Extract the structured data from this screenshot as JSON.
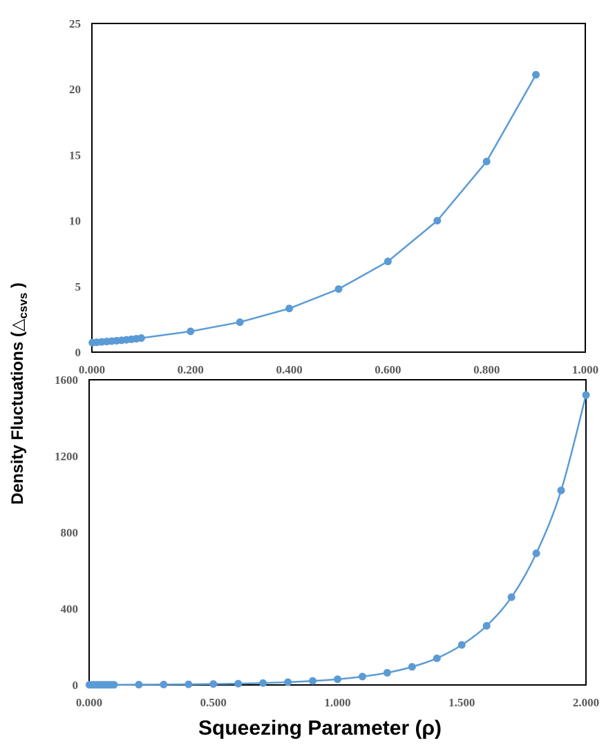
{
  "colors": {
    "series": "#5b9bd5",
    "frame": "#000000",
    "tick_text": "#595959"
  },
  "labels": {
    "ylabel_main": "Density Fluctuations (",
    "ylabel_symbol": "△",
    "ylabel_sub": "csvs",
    "ylabel_close": " )",
    "xlabel": "Squeezing Parameter (ρ)"
  },
  "chart_data": [
    {
      "type": "line",
      "xlim": [
        0,
        1
      ],
      "ylim": [
        0,
        25
      ],
      "xticks": [
        0,
        0.2,
        0.4,
        0.6,
        0.8,
        1.0
      ],
      "xtick_labels": [
        "0.000",
        "0.200",
        "0.400",
        "0.600",
        "0.800",
        "1.000"
      ],
      "yticks": [
        0,
        5,
        10,
        15,
        20,
        25
      ],
      "ytick_labels": [
        "0",
        "5",
        "10",
        "15",
        "20",
        "25"
      ],
      "grid": false,
      "legend": "none",
      "series": [
        {
          "x": [
            0.001,
            0.01,
            0.02,
            0.03,
            0.04,
            0.05,
            0.06,
            0.07,
            0.08,
            0.09,
            0.1,
            0.2,
            0.3,
            0.4,
            0.5,
            0.6,
            0.7,
            0.8,
            0.9
          ],
          "y": [
            0.72,
            0.75,
            0.78,
            0.81,
            0.84,
            0.87,
            0.9,
            0.94,
            0.98,
            1.02,
            1.07,
            1.58,
            2.28,
            3.32,
            4.8,
            6.9,
            10.0,
            14.5,
            21.1
          ]
        }
      ]
    },
    {
      "type": "line",
      "xlim": [
        0,
        2
      ],
      "ylim": [
        0,
        1600
      ],
      "xticks": [
        0,
        0.5,
        1.0,
        1.5,
        2.0
      ],
      "xtick_labels": [
        "0.000",
        "0.500",
        "1.000",
        "1.500",
        "2.000"
      ],
      "yticks": [
        0,
        400,
        800,
        1200,
        1600
      ],
      "ytick_labels": [
        "0",
        "400",
        "800",
        "1200",
        "1600"
      ],
      "grid": false,
      "legend": "none",
      "series": [
        {
          "x": [
            0.001,
            0.01,
            0.02,
            0.03,
            0.04,
            0.05,
            0.06,
            0.07,
            0.08,
            0.09,
            0.1,
            0.2,
            0.3,
            0.4,
            0.5,
            0.6,
            0.7,
            0.8,
            0.9,
            1.0,
            1.1,
            1.2,
            1.3,
            1.4,
            1.5,
            1.6,
            1.7,
            1.8,
            1.9,
            2.0
          ],
          "y": [
            0.72,
            0.75,
            0.78,
            0.81,
            0.84,
            0.87,
            0.9,
            0.94,
            0.98,
            1.02,
            1.07,
            1.58,
            2.28,
            3.32,
            4.8,
            6.9,
            10.0,
            14.5,
            21.1,
            30,
            44,
            64,
            95,
            140,
            210,
            310,
            460,
            690,
            1020,
            1520
          ]
        }
      ]
    }
  ]
}
